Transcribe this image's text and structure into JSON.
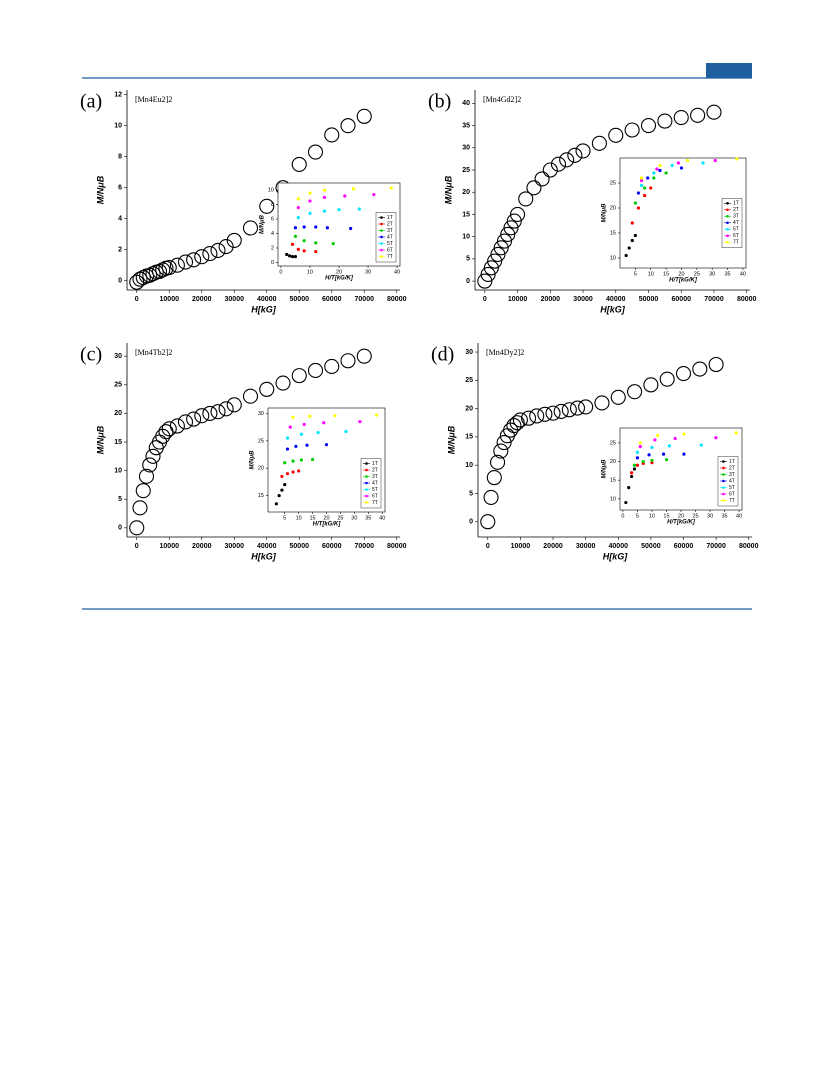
{
  "chart_data": [
    {
      "type": "scatter",
      "panel": "(a)",
      "compound": "[Mn4Eu2]2",
      "x_label": "H[kG]",
      "y_label": "M/NμB",
      "color": "#000000",
      "x": [
        0,
        1000,
        2000,
        3000,
        4000,
        5000,
        6000,
        7000,
        8000,
        9000,
        10000,
        12500,
        15000,
        17500,
        20000,
        22500,
        25000,
        27500,
        30000,
        35000,
        40000,
        45000,
        50000,
        55000,
        60000,
        65000,
        70000
      ],
      "values": [
        -0.1,
        0.1,
        0.2,
        0.3,
        0.35,
        0.45,
        0.55,
        0.6,
        0.7,
        0.8,
        0.85,
        1.0,
        1.2,
        1.35,
        1.55,
        1.75,
        1.95,
        2.2,
        2.6,
        3.4,
        4.8,
        6.0,
        7.5,
        8.3,
        9.4,
        10.0,
        10.6
      ],
      "xlim": [
        -3000,
        81000
      ],
      "ylim": [
        -0.6,
        12.3
      ],
      "xticks": [
        0,
        10000,
        20000,
        30000,
        40000,
        50000,
        60000,
        70000,
        80000
      ],
      "yticks": [
        0,
        2,
        4,
        6,
        8,
        10,
        12
      ]
    },
    {
      "type": "scatter",
      "x_label": "H/T[kG/K]",
      "y_label": "M/NμB",
      "legend": "lower right",
      "xlim": [
        -1,
        41
      ],
      "ylim": [
        -0.5,
        11
      ],
      "xticks": [
        0,
        10,
        20,
        30,
        40
      ],
      "yticks": [
        0,
        2,
        4,
        6,
        8,
        10
      ],
      "series": [
        {
          "name": "1T",
          "color": "#000000",
          "x": [
            2,
            3,
            4,
            5
          ],
          "values": [
            1.1,
            0.9,
            0.8,
            0.8
          ]
        },
        {
          "name": "2T",
          "color": "#ff0000",
          "x": [
            4,
            6,
            8,
            12
          ],
          "values": [
            2.5,
            1.8,
            1.6,
            1.5
          ]
        },
        {
          "name": "3T",
          "color": "#00cc00",
          "x": [
            5,
            8,
            12,
            18
          ],
          "values": [
            3.6,
            3.0,
            2.7,
            2.6
          ]
        },
        {
          "name": "4T",
          "color": "#0000ff",
          "x": [
            5,
            8,
            12,
            16,
            24
          ],
          "values": [
            4.8,
            4.9,
            4.9,
            4.8,
            4.7
          ]
        },
        {
          "name": "5T",
          "color": "#00e5ff",
          "x": [
            6,
            10,
            15,
            20,
            27
          ],
          "values": [
            6.2,
            6.8,
            7.1,
            7.3,
            7.4
          ]
        },
        {
          "name": "6T",
          "color": "#ff00ff",
          "x": [
            6,
            10,
            15,
            22,
            32
          ],
          "values": [
            7.6,
            8.5,
            9.0,
            9.2,
            9.4
          ]
        },
        {
          "name": "7T",
          "color": "#ffff00",
          "x": [
            6,
            10,
            15,
            25,
            38
          ],
          "values": [
            8.8,
            9.6,
            10.0,
            10.2,
            10.3
          ]
        }
      ]
    },
    {
      "type": "scatter",
      "panel": "(b)",
      "compound": "[Mn4Gd2]2",
      "x_label": "H[kG]",
      "y_label": "M/NμB",
      "color": "#000000",
      "x": [
        0,
        1000,
        2000,
        3000,
        4000,
        5000,
        6000,
        7000,
        8000,
        9000,
        10000,
        12500,
        15000,
        17500,
        20000,
        22500,
        25000,
        27500,
        30000,
        35000,
        40000,
        45000,
        50000,
        55000,
        60000,
        65000,
        70000
      ],
      "values": [
        0,
        1.5,
        3,
        4.5,
        6,
        7.5,
        9,
        10.5,
        12,
        13.5,
        15,
        18.5,
        21,
        23,
        25,
        26.3,
        27.3,
        28.3,
        29.3,
        31,
        32.8,
        34,
        35,
        36,
        36.8,
        37.3,
        38
      ],
      "xlim": [
        -3000,
        81000
      ],
      "ylim": [
        -2,
        43
      ],
      "xticks": [
        0,
        10000,
        20000,
        30000,
        40000,
        50000,
        60000,
        70000,
        80000
      ],
      "yticks": [
        0,
        5,
        10,
        15,
        20,
        25,
        30,
        35,
        40
      ]
    },
    {
      "type": "scatter",
      "x_label": "H/T[kG/K]",
      "y_label": "M/NμB",
      "legend": "center right",
      "xlim": [
        0,
        41
      ],
      "ylim": [
        8,
        30
      ],
      "xticks": [
        5,
        10,
        15,
        20,
        25,
        30,
        35,
        40
      ],
      "yticks": [
        10,
        15,
        20,
        25
      ],
      "series": [
        {
          "name": "1T",
          "color": "#000000",
          "x": [
            2,
            3,
            4,
            5
          ],
          "values": [
            10.5,
            12,
            13.5,
            14.5
          ]
        },
        {
          "name": "2T",
          "color": "#ff0000",
          "x": [
            4,
            6,
            8,
            10
          ],
          "values": [
            17,
            20,
            22.5,
            24
          ]
        },
        {
          "name": "3T",
          "color": "#00cc00",
          "x": [
            5,
            8,
            11,
            15
          ],
          "values": [
            21,
            24,
            26,
            27
          ]
        },
        {
          "name": "4T",
          "color": "#0000ff",
          "x": [
            6,
            9,
            13,
            20
          ],
          "values": [
            23,
            26,
            27.5,
            28
          ]
        },
        {
          "name": "5T",
          "color": "#00e5ff",
          "x": [
            7,
            11,
            17,
            27
          ],
          "values": [
            24.5,
            27,
            28.5,
            29
          ]
        },
        {
          "name": "6T",
          "color": "#ff00ff",
          "x": [
            7,
            12,
            19,
            31
          ],
          "values": [
            25.5,
            27.8,
            29,
            29.5
          ]
        },
        {
          "name": "7T",
          "color": "#ffff00",
          "x": [
            7,
            13,
            22,
            38
          ],
          "values": [
            26,
            28.5,
            29.5,
            29.8
          ]
        }
      ]
    },
    {
      "type": "scatter",
      "panel": "(c)",
      "compound": "[Mn4Tb2]2",
      "x_label": "H[kG]",
      "y_label": "M/NμB",
      "color": "#000000",
      "x": [
        0,
        1000,
        2000,
        3000,
        4000,
        5000,
        6000,
        7000,
        8000,
        9000,
        10000,
        12500,
        15000,
        17500,
        20000,
        22500,
        25000,
        27500,
        30000,
        35000,
        40000,
        45000,
        50000,
        55000,
        60000,
        65000,
        70000
      ],
      "values": [
        0,
        3.5,
        6.5,
        9,
        11,
        12.5,
        14,
        15,
        16,
        16.8,
        17.3,
        17.8,
        18.5,
        19,
        19.6,
        20,
        20.3,
        20.8,
        21.5,
        23,
        24.2,
        25.3,
        26.6,
        27.5,
        28.2,
        29.2,
        30
      ],
      "xlim": [
        -3000,
        81000
      ],
      "ylim": [
        -1.6,
        32.3
      ],
      "xticks": [
        0,
        10000,
        20000,
        30000,
        40000,
        50000,
        60000,
        70000,
        80000
      ],
      "yticks": [
        0,
        5,
        10,
        15,
        20,
        25,
        30
      ]
    },
    {
      "type": "scatter",
      "x_label": "H/T[kG/K]",
      "y_label": "M/NμB",
      "legend": "lower right",
      "xlim": [
        -1,
        41
      ],
      "ylim": [
        12,
        31
      ],
      "xticks": [
        5,
        10,
        15,
        20,
        25,
        30,
        35,
        40
      ],
      "yticks": [
        15,
        20,
        25,
        30
      ],
      "series": [
        {
          "name": "1T",
          "color": "#000000",
          "x": [
            2,
            3,
            4,
            5
          ],
          "values": [
            13.5,
            15,
            16,
            17
          ]
        },
        {
          "name": "2T",
          "color": "#ff0000",
          "x": [
            4,
            6,
            8,
            10
          ],
          "values": [
            18.5,
            19,
            19.3,
            19.5
          ]
        },
        {
          "name": "3T",
          "color": "#00cc00",
          "x": [
            5,
            8,
            11,
            15
          ],
          "values": [
            21,
            21.3,
            21.5,
            21.6
          ]
        },
        {
          "name": "4T",
          "color": "#0000ff",
          "x": [
            6,
            9,
            13,
            20
          ],
          "values": [
            23.5,
            24,
            24.2,
            24.3
          ]
        },
        {
          "name": "5T",
          "color": "#00e5ff",
          "x": [
            6,
            11,
            17,
            27
          ],
          "values": [
            25.5,
            26.2,
            26.5,
            26.7
          ]
        },
        {
          "name": "6T",
          "color": "#ff00ff",
          "x": [
            7,
            12,
            19,
            32
          ],
          "values": [
            27.5,
            28,
            28.3,
            28.5
          ]
        },
        {
          "name": "7T",
          "color": "#ffff00",
          "x": [
            8,
            14,
            23,
            38
          ],
          "values": [
            29.3,
            29.5,
            29.6,
            29.7
          ]
        }
      ]
    },
    {
      "type": "scatter",
      "panel": "(d)",
      "compound": "[Mn4Dy2]2",
      "x_label": "H[kG]",
      "y_label": "M/NμB",
      "color": "#000000",
      "x": [
        0,
        1000,
        2000,
        3000,
        4000,
        5000,
        6000,
        7000,
        8000,
        9000,
        10000,
        12500,
        15000,
        17500,
        20000,
        22500,
        25000,
        27500,
        30000,
        35000,
        40000,
        45000,
        50000,
        55000,
        60000,
        65000,
        70000
      ],
      "values": [
        0,
        4.3,
        7.8,
        10.5,
        12.5,
        14,
        15.2,
        16.2,
        17,
        17.5,
        18,
        18.3,
        18.7,
        19,
        19.2,
        19.5,
        19.8,
        20.1,
        20.3,
        21,
        22,
        23,
        24.2,
        25.2,
        26.2,
        27,
        27.8
      ],
      "xlim": [
        -3000,
        81000
      ],
      "ylim": [
        -2.7,
        31.6
      ],
      "xticks": [
        0,
        10000,
        20000,
        30000,
        40000,
        50000,
        60000,
        70000,
        80000
      ],
      "yticks": [
        0,
        5,
        10,
        15,
        20,
        25,
        30
      ]
    },
    {
      "type": "scatter",
      "x_label": "H/T[kG/K]",
      "y_label": "M/NμB",
      "legend": "lower right",
      "xlim": [
        -1,
        41
      ],
      "ylim": [
        7,
        29
      ],
      "xticks": [
        0,
        5,
        10,
        15,
        20,
        25,
        30,
        35,
        40
      ],
      "yticks": [
        10,
        15,
        20,
        25
      ],
      "series": [
        {
          "name": "1T",
          "color": "#000000",
          "x": [
            1,
            2,
            3,
            4
          ],
          "values": [
            9,
            13,
            16,
            18
          ]
        },
        {
          "name": "2T",
          "color": "#ff0000",
          "x": [
            3,
            5,
            7,
            10
          ],
          "values": [
            17,
            19,
            19.5,
            19.7
          ]
        },
        {
          "name": "3T",
          "color": "#00cc00",
          "x": [
            4,
            7,
            10,
            15
          ],
          "values": [
            19,
            20,
            20.3,
            20.5
          ]
        },
        {
          "name": "4T",
          "color": "#0000ff",
          "x": [
            5,
            9,
            14,
            21
          ],
          "values": [
            21,
            21.8,
            22,
            22
          ]
        },
        {
          "name": "5T",
          "color": "#00e5ff",
          "x": [
            5,
            10,
            16,
            27
          ],
          "values": [
            22.5,
            23.8,
            24.2,
            24.4
          ]
        },
        {
          "name": "6T",
          "color": "#ff00ff",
          "x": [
            6,
            11,
            18,
            32
          ],
          "values": [
            24,
            25.8,
            26.2,
            26.4
          ]
        },
        {
          "name": "7T",
          "color": "#ffff00",
          "x": [
            6,
            12,
            21,
            39
          ],
          "values": [
            25,
            27,
            27.4,
            27.7
          ]
        }
      ]
    }
  ]
}
